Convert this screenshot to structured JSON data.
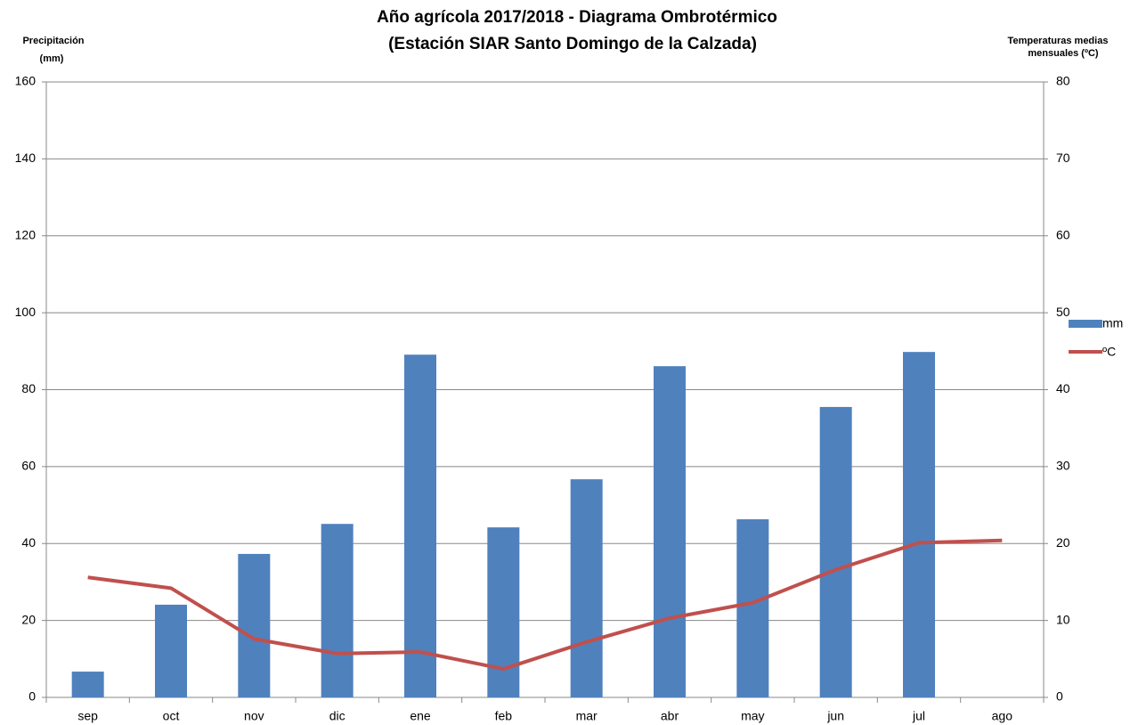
{
  "chart_data": {
    "type": "bar",
    "title": [
      "Año agrícola 2017/2018 - Diagrama Ombrotérmico",
      "(Estación SIAR Santo Domingo de la Calzada)"
    ],
    "ylabel": [
      "Precipitación",
      "(mm)"
    ],
    "y2label": [
      "Temperaturas medias",
      "mensuales  (ºC)"
    ],
    "categories": [
      "sep",
      "oct",
      "nov",
      "dic",
      "ene",
      "feb",
      "mar",
      "abr",
      "may",
      "jun",
      "jul",
      "ago"
    ],
    "series": [
      {
        "name": "mm",
        "type": "bar",
        "color": "#4f81bd",
        "values": [
          6.7,
          24.1,
          37.3,
          45.1,
          89.1,
          44.2,
          56.7,
          86.1,
          46.3,
          75.5,
          89.8,
          null
        ]
      },
      {
        "name": "ºC",
        "type": "line",
        "axis": "y2",
        "color": "#c0504d",
        "values": [
          15.6,
          14.2,
          7.6,
          5.7,
          5.9,
          3.7,
          7.2,
          10.3,
          12.3,
          16.6,
          20.1,
          20.4
        ]
      }
    ],
    "ylim": [
      0,
      160
    ],
    "yticks": [
      0,
      20,
      40,
      60,
      80,
      100,
      120,
      140,
      160
    ],
    "y2lim": [
      0,
      80
    ],
    "y2ticks": [
      0,
      10,
      20,
      30,
      40,
      50,
      60,
      70,
      80
    ],
    "grid": true,
    "legend": "right"
  }
}
